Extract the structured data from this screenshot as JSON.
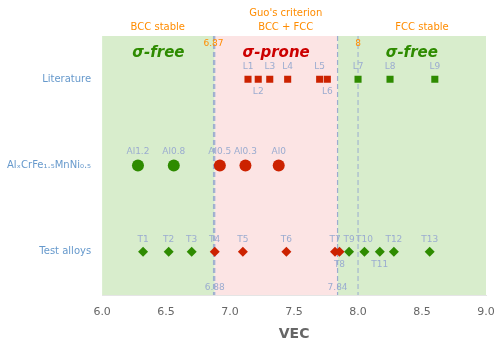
{
  "chart_data": {
    "type": "scatter",
    "xlabel": "VEC",
    "xlim": [
      6.0,
      9.0
    ],
    "xticks": [
      {
        "value": 6,
        "label": "6.0"
      },
      6.5,
      {
        "value": 7,
        "label": "7.0"
      },
      7.5,
      {
        "value": 8,
        "label": "8.0"
      },
      8.5,
      {
        "value": 9,
        "label": "9.0"
      }
    ],
    "grid": false,
    "row_label_color": "#6699cc",
    "series": [
      {
        "name": "Literature",
        "marker": "square",
        "x": [
          7.14,
          7.22,
          7.31,
          7.45,
          7.7,
          7.76,
          8.0,
          8.25,
          8.6
        ],
        "point_labels": [
          "L1",
          "L2",
          "L3",
          "L4",
          "L5",
          "L6",
          "L7",
          "L8",
          "L9"
        ],
        "colors": [
          "#cc2200",
          "#cc2200",
          "#cc2200",
          "#cc2200",
          "#cc2200",
          "#cc2200",
          "#2e8b00",
          "#2e8b00",
          "#2e8b00"
        ]
      },
      {
        "name": "AlₓCrFe₁.₅MnNi₀.₅",
        "marker": "circle",
        "x": [
          6.28,
          6.56,
          6.92,
          7.12,
          7.38
        ],
        "point_labels": [
          "Al1.2",
          "Al0.8",
          "Al0.5",
          "Al0.3",
          "Al0"
        ],
        "colors": [
          "#2e8b00",
          "#2e8b00",
          "#cc2200",
          "#cc2200",
          "#cc2200"
        ]
      },
      {
        "name": "Test alloys",
        "marker": "diamond",
        "x": [
          6.32,
          6.52,
          6.7,
          6.88,
          7.1,
          7.44,
          7.82,
          7.855,
          7.93,
          8.05,
          8.17,
          8.28,
          8.56
        ],
        "point_labels": [
          "T1",
          "T2",
          "T3",
          "T4",
          "T5",
          "T6",
          "T7",
          "T8",
          "T9",
          "T10",
          "T11",
          "T12",
          "T13"
        ],
        "colors": [
          "#2e8b00",
          "#2e8b00",
          "#2e8b00",
          "#cc2200",
          "#cc2200",
          "#cc2200",
          "#cc2200",
          "#cc2200",
          "#2e8b00",
          "#2e8b00",
          "#2e8b00",
          "#2e8b00",
          "#2e8b00"
        ]
      }
    ],
    "point_label_color": "#9bacd0",
    "sigma_boundaries": [
      6.88,
      7.84
    ],
    "sigma_regions": [
      {
        "label": "σ-free",
        "color": "#d8edcc",
        "text_color": "#2e8b00"
      },
      {
        "label": "σ-prone",
        "color": "#fce4e4",
        "text_color": "#cc0000"
      },
      {
        "label": "σ-free",
        "color": "#d8edcc",
        "text_color": "#2e8b00"
      }
    ],
    "boundary_line_color": "#9bacd0",
    "guo_boundaries": [
      6.87,
      8
    ],
    "guo_title": "Guo's criterion",
    "guo_regions": [
      "BCC stable",
      "BCC + FCC",
      "FCC stable"
    ],
    "guo_color": "#ff8c00"
  }
}
